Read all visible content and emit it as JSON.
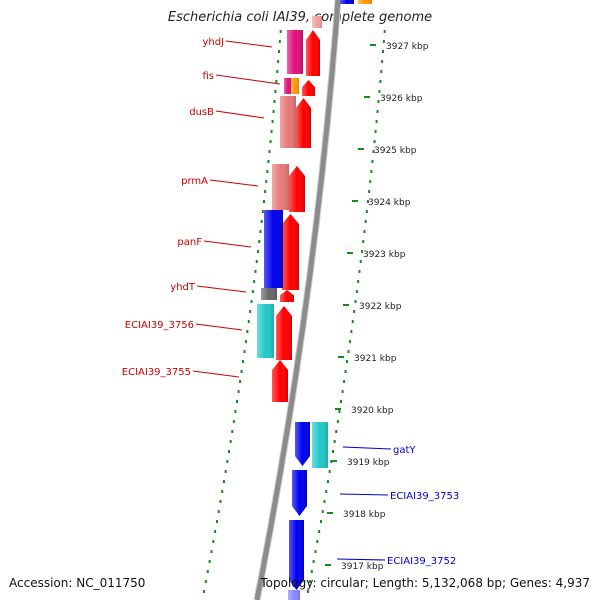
{
  "title": "Escherichia coli IAI39, complete genome",
  "footer": {
    "accession": "Accession: NC_011750",
    "topology": "Topology: circular; Length: 5,132,068 bp; Genes: 4,937"
  },
  "colors": {
    "backbone": "#8c8c8c",
    "forward_label": "#cc0000",
    "reverse_label": "#0000cc",
    "dots": "#1a8a1a",
    "gene_red": "#ff0000",
    "gene_pink": "#e87878",
    "gene_magenta": "#e0107a",
    "gene_orange": "#ff9900",
    "gene_blue": "#0000ee",
    "gene_cyan": "#22c8c8",
    "gene_gray": "#666666"
  },
  "kbp_ticks": [
    "3927 kbp",
    "3926 kbp",
    "3925 kbp",
    "3924 kbp",
    "3923 kbp",
    "3922 kbp",
    "3921 kbp",
    "3920 kbp",
    "3919 kbp",
    "3918 kbp",
    "3917 kbp"
  ],
  "forward_gene_labels": [
    "yhdJ",
    "fis",
    "dusB",
    "prmA",
    "panF",
    "yhdT",
    "ECIAI39_3756",
    "ECIAI39_3755"
  ],
  "reverse_gene_labels": [
    "gatY",
    "ECIAI39_3753",
    "ECIAI39_3752"
  ]
}
